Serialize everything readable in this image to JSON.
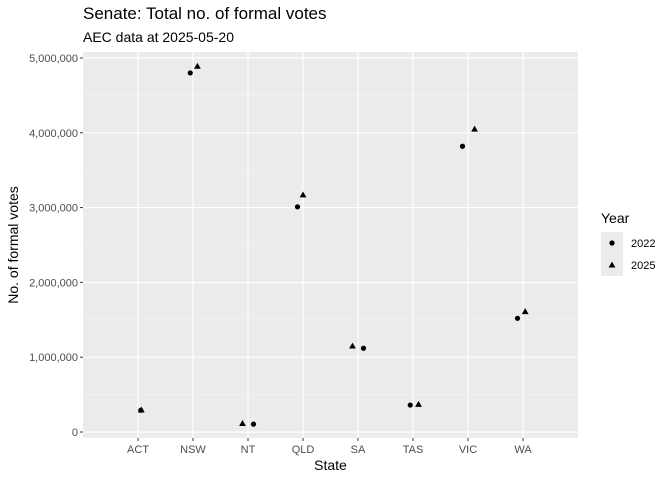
{
  "chart_data": {
    "type": "scatter",
    "title": "Senate: Total no. of formal votes",
    "subtitle": "AEC data at 2025-05-20",
    "xlabel": "State",
    "ylabel": "No. of formal votes",
    "categories": [
      "ACT",
      "NSW",
      "NT",
      "QLD",
      "SA",
      "TAS",
      "VIC",
      "WA"
    ],
    "ylim": [
      -80000,
      5080000
    ],
    "yticks": [
      0,
      1000000,
      2000000,
      3000000,
      4000000,
      5000000
    ],
    "ytick_labels": [
      "0",
      "1,000,000",
      "2,000,000",
      "3,000,000",
      "4,000,000",
      "5,000,000"
    ],
    "grid": true,
    "legend": {
      "title": "Year",
      "placement": "right"
    },
    "series": [
      {
        "name": "2022",
        "marker": "circle",
        "values": [
          290000,
          4800000,
          105000,
          3010000,
          1120000,
          360000,
          3820000,
          1520000
        ],
        "jitter": [
          0.05,
          -0.05,
          0.1,
          -0.1,
          0.1,
          -0.05,
          -0.1,
          -0.1
        ]
      },
      {
        "name": "2025",
        "marker": "triangle",
        "values": [
          295000,
          4890000,
          115000,
          3170000,
          1150000,
          370000,
          4050000,
          1610000
        ],
        "jitter": [
          0.06,
          0.08,
          -0.1,
          0.0,
          -0.1,
          0.1,
          0.12,
          0.04
        ]
      }
    ],
    "colors": {
      "panel": "#ebebeb",
      "grid_major": "#ffffff",
      "grid_minor": "#f5f5f5",
      "point": "#000000",
      "legend_key": "#ebebeb"
    }
  }
}
